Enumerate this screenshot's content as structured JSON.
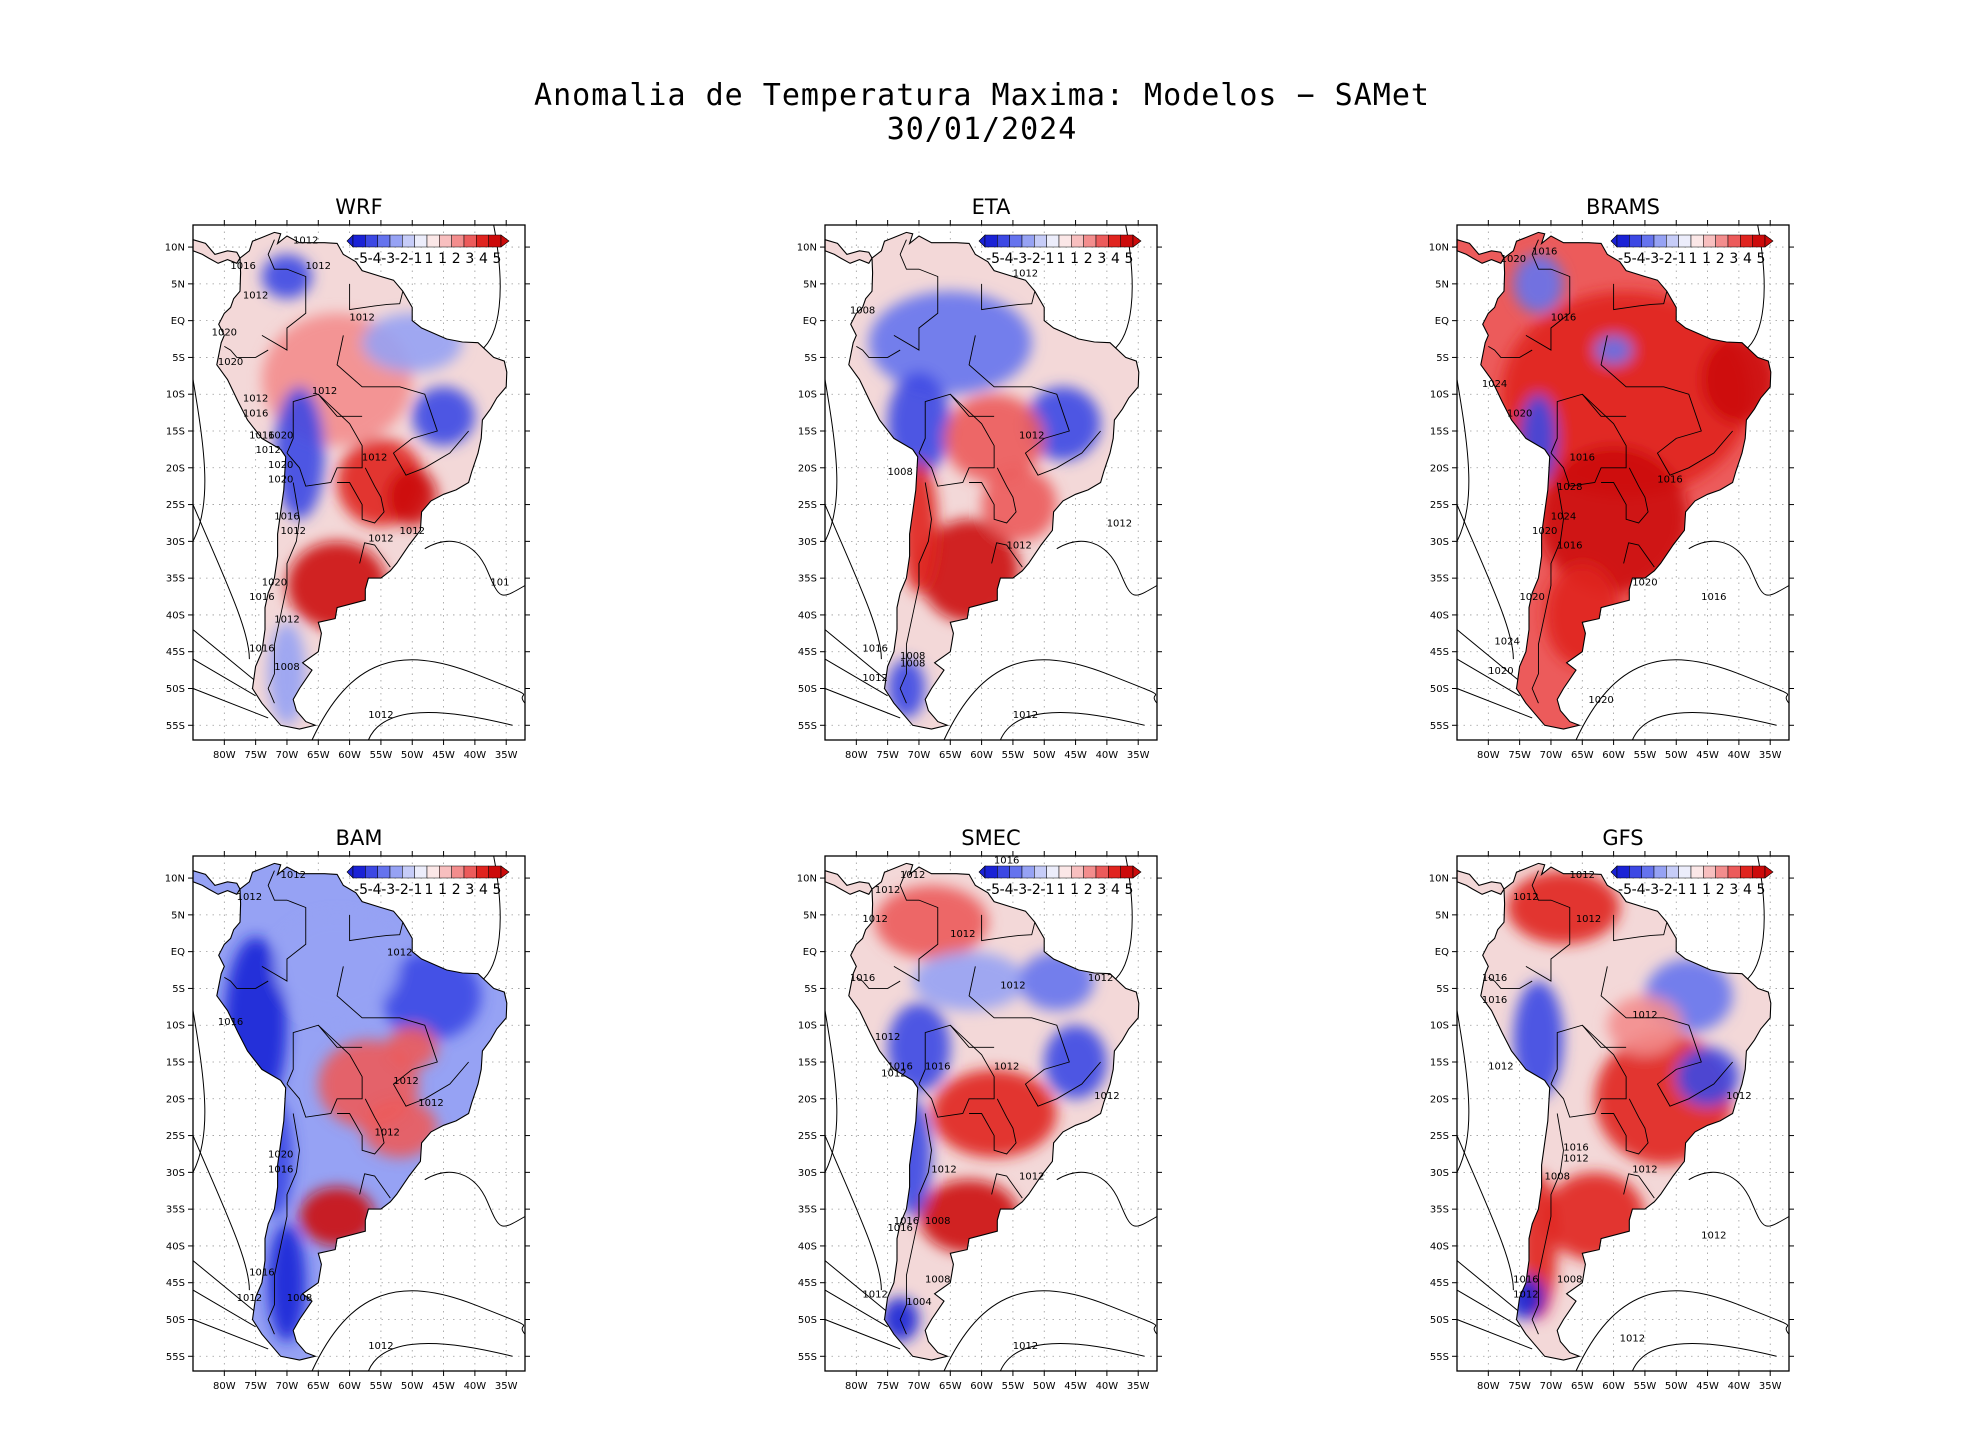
{
  "title": {
    "line1": "Anomalia de Temperatura Maxima: Modelos − SAMet",
    "line2": "30/01/2024"
  },
  "colorbar": {
    "labels": [
      "-5",
      "-4",
      "-3",
      "-2",
      "-1",
      "1",
      "1",
      "2",
      "3",
      "4",
      "5"
    ],
    "colors": [
      "#1a22d6",
      "#3c48e4",
      "#6573ee",
      "#96a2f4",
      "#c6ccf8",
      "#ecedfb",
      "#fbe7e7",
      "#f8bfbf",
      "#f38d8d",
      "#ec5b5b",
      "#e0241f",
      "#cc0a0a"
    ]
  },
  "axes": {
    "lat_labels": [
      "10N",
      "5N",
      "EQ",
      "5S",
      "10S",
      "15S",
      "20S",
      "25S",
      "30S",
      "35S",
      "40S",
      "45S",
      "50S",
      "55S"
    ],
    "lon_labels": [
      "80W",
      "75W",
      "70W",
      "65W",
      "60W",
      "55W",
      "50W",
      "45W",
      "40W",
      "35W"
    ]
  },
  "panels": [
    {
      "name": "WRF",
      "fill": "mixed",
      "labels": [
        {
          "t": "1012",
          "x": -67,
          "y": 10.5
        },
        {
          "t": "1016",
          "x": -77,
          "y": 7
        },
        {
          "t": "1012",
          "x": -65,
          "y": 7
        },
        {
          "t": "1012",
          "x": -75,
          "y": 3
        },
        {
          "t": "1012",
          "x": -58,
          "y": 0
        },
        {
          "t": "1020",
          "x": -80,
          "y": -2
        },
        {
          "t": "1020",
          "x": -79,
          "y": -6
        },
        {
          "t": "1012",
          "x": -75,
          "y": -11
        },
        {
          "t": "1016",
          "x": -75,
          "y": -13
        },
        {
          "t": "1012",
          "x": -64,
          "y": -10
        },
        {
          "t": "1016",
          "x": -74,
          "y": -16
        },
        {
          "t": "1020",
          "x": -71,
          "y": -16
        },
        {
          "t": "1012",
          "x": -73,
          "y": -18
        },
        {
          "t": "1012",
          "x": -56,
          "y": -19
        },
        {
          "t": "1020",
          "x": -71,
          "y": -20
        },
        {
          "t": "1020",
          "x": -71,
          "y": -22
        },
        {
          "t": "1016",
          "x": -70,
          "y": -27
        },
        {
          "t": "1012",
          "x": -69,
          "y": -29
        },
        {
          "t": "1012",
          "x": -55,
          "y": -30
        },
        {
          "t": "1012",
          "x": -50,
          "y": -29
        },
        {
          "t": "1020",
          "x": -72,
          "y": -36
        },
        {
          "t": "1016",
          "x": -74,
          "y": -38
        },
        {
          "t": "1012",
          "x": -70,
          "y": -41
        },
        {
          "t": "1016",
          "x": -74,
          "y": -45
        },
        {
          "t": "1008",
          "x": -70,
          "y": -47.5
        },
        {
          "t": "1012",
          "x": -55,
          "y": -54
        },
        {
          "t": "101",
          "x": -36,
          "y": -36
        }
      ]
    },
    {
      "name": "ETA",
      "fill": "cold-north",
      "labels": [
        {
          "t": "1012",
          "x": -53,
          "y": 6
        },
        {
          "t": "1008",
          "x": -79,
          "y": 1
        },
        {
          "t": "1012",
          "x": -52,
          "y": -16
        },
        {
          "t": "1008",
          "x": -73,
          "y": -21
        },
        {
          "t": "1012",
          "x": -54,
          "y": -31
        },
        {
          "t": "1012",
          "x": -38,
          "y": -28
        },
        {
          "t": "1016",
          "x": -77,
          "y": -45
        },
        {
          "t": "1008",
          "x": -71,
          "y": -46
        },
        {
          "t": "1008",
          "x": -71,
          "y": -47
        },
        {
          "t": "1012",
          "x": -77,
          "y": -49
        },
        {
          "t": "1012",
          "x": -53,
          "y": -54
        }
      ]
    },
    {
      "name": "BRAMS",
      "fill": "warm",
      "labels": [
        {
          "t": "1016",
          "x": -71,
          "y": 9
        },
        {
          "t": "1020",
          "x": -76,
          "y": 8
        },
        {
          "t": "1016",
          "x": -68,
          "y": 0
        },
        {
          "t": "1024",
          "x": -79,
          "y": -9
        },
        {
          "t": "1020",
          "x": -75,
          "y": -13
        },
        {
          "t": "1016",
          "x": -65,
          "y": -19
        },
        {
          "t": "1016",
          "x": -51,
          "y": -22
        },
        {
          "t": "1028",
          "x": -67,
          "y": -23
        },
        {
          "t": "1024",
          "x": -68,
          "y": -27
        },
        {
          "t": "1020",
          "x": -71,
          "y": -29
        },
        {
          "t": "1016",
          "x": -67,
          "y": -31
        },
        {
          "t": "1020",
          "x": -73,
          "y": -38
        },
        {
          "t": "1020",
          "x": -55,
          "y": -36
        },
        {
          "t": "1016",
          "x": -44,
          "y": -38
        },
        {
          "t": "1024",
          "x": -77,
          "y": -44
        },
        {
          "t": "1020",
          "x": -78,
          "y": -48
        },
        {
          "t": "1020",
          "x": -62,
          "y": -52
        }
      ]
    },
    {
      "name": "BAM",
      "fill": "cold-andes",
      "labels": [
        {
          "t": "1012",
          "x": -69,
          "y": 10
        },
        {
          "t": "1012",
          "x": -76,
          "y": 7
        },
        {
          "t": "1012",
          "x": -52,
          "y": -0.5
        },
        {
          "t": "1016",
          "x": -79,
          "y": -10
        },
        {
          "t": "1012",
          "x": -51,
          "y": -18
        },
        {
          "t": "1012",
          "x": -47,
          "y": -21
        },
        {
          "t": "1012",
          "x": -54,
          "y": -25
        },
        {
          "t": "1020",
          "x": -71,
          "y": -28
        },
        {
          "t": "1016",
          "x": -71,
          "y": -30
        },
        {
          "t": "1016",
          "x": -74,
          "y": -44
        },
        {
          "t": "1012",
          "x": -76,
          "y": -47.5
        },
        {
          "t": "1008",
          "x": -68,
          "y": -47.5
        },
        {
          "t": "1012",
          "x": -55,
          "y": -54
        }
      ]
    },
    {
      "name": "SMEC",
      "fill": "mixed-cold-north",
      "labels": [
        {
          "t": "1016",
          "x": -56,
          "y": 12
        },
        {
          "t": "1012",
          "x": -71,
          "y": 10
        },
        {
          "t": "1012",
          "x": -75,
          "y": 8
        },
        {
          "t": "1012",
          "x": -77,
          "y": 4
        },
        {
          "t": "1012",
          "x": -63,
          "y": 2
        },
        {
          "t": "1016",
          "x": -79,
          "y": -4
        },
        {
          "t": "1012",
          "x": -55,
          "y": -5
        },
        {
          "t": "1012",
          "x": -41,
          "y": -4
        },
        {
          "t": "1012",
          "x": -75,
          "y": -12
        },
        {
          "t": "1016",
          "x": -73,
          "y": -16
        },
        {
          "t": "1016",
          "x": -67,
          "y": -16
        },
        {
          "t": "1012",
          "x": -74,
          "y": -17
        },
        {
          "t": "1012",
          "x": -56,
          "y": -16
        },
        {
          "t": "1012",
          "x": -40,
          "y": -20
        },
        {
          "t": "1012",
          "x": -66,
          "y": -30
        },
        {
          "t": "1012",
          "x": -52,
          "y": -31
        },
        {
          "t": "1016",
          "x": -72,
          "y": -37
        },
        {
          "t": "1008",
          "x": -67,
          "y": -37
        },
        {
          "t": "1016",
          "x": -73,
          "y": -38
        },
        {
          "t": "1008",
          "x": -67,
          "y": -45
        },
        {
          "t": "1012",
          "x": -77,
          "y": -47
        },
        {
          "t": "1004",
          "x": -70,
          "y": -48
        },
        {
          "t": "1012",
          "x": -53,
          "y": -54
        }
      ]
    },
    {
      "name": "GFS",
      "fill": "mixed-warm-south",
      "labels": [
        {
          "t": "1012",
          "x": -65,
          "y": 10
        },
        {
          "t": "1012",
          "x": -74,
          "y": 7
        },
        {
          "t": "1012",
          "x": -64,
          "y": 4
        },
        {
          "t": "1016",
          "x": -79,
          "y": -4
        },
        {
          "t": "1016",
          "x": -79,
          "y": -7
        },
        {
          "t": "1012",
          "x": -55,
          "y": -9
        },
        {
          "t": "1012",
          "x": -78,
          "y": -16
        },
        {
          "t": "1012",
          "x": -40,
          "y": -20
        },
        {
          "t": "1016",
          "x": -66,
          "y": -27
        },
        {
          "t": "1012",
          "x": -66,
          "y": -28.5
        },
        {
          "t": "1012",
          "x": -55,
          "y": -30
        },
        {
          "t": "1008",
          "x": -69,
          "y": -31
        },
        {
          "t": "1012",
          "x": -44,
          "y": -39
        },
        {
          "t": "1016",
          "x": -74,
          "y": -45
        },
        {
          "t": "1008",
          "x": -67,
          "y": -45
        },
        {
          "t": "1012",
          "x": -74,
          "y": -47
        },
        {
          "t": "1012",
          "x": -57,
          "y": -53
        }
      ]
    }
  ]
}
